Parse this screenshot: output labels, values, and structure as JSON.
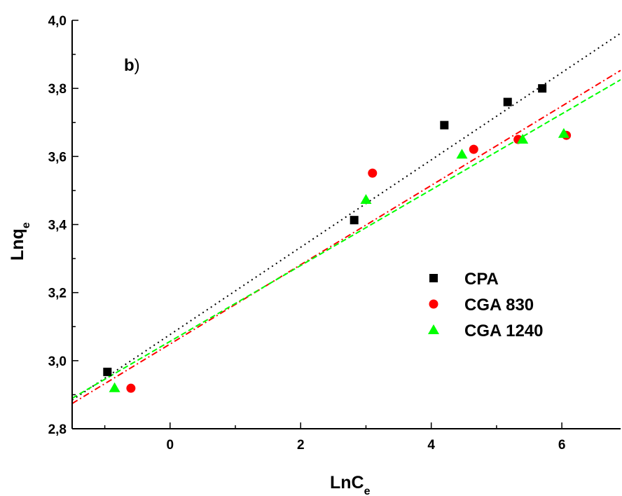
{
  "chart_data": {
    "type": "scatter",
    "panel_label_bold": "b",
    "panel_label_rest": ")",
    "xlabel_main": "LnC",
    "xlabel_sub": "e",
    "ylabel_main": "Lnq",
    "ylabel_sub": "e",
    "xlim": [
      -1.5,
      6.9
    ],
    "ylim": [
      2.8,
      4.0
    ],
    "x_ticks": [
      0,
      2,
      4,
      6
    ],
    "x_tick_labels": [
      "0",
      "2",
      "4",
      "6"
    ],
    "y_ticks": [
      2.8,
      3.0,
      3.2,
      3.4,
      3.6,
      3.8,
      4.0
    ],
    "y_tick_labels": [
      "2,8",
      "3,0",
      "3,2",
      "3,4",
      "3,6",
      "3,8",
      "4,0"
    ],
    "legend_position": "right",
    "series": [
      {
        "name": "CPA",
        "marker": "square",
        "color": "#000000",
        "x": [
          -0.96,
          2.82,
          4.2,
          5.17,
          5.7
        ],
        "y": [
          2.967,
          3.413,
          3.692,
          3.76,
          3.8
        ],
        "fit": {
          "intercept": 3.0767,
          "slope": 0.1283,
          "x_range": [
            -1.5,
            6.9
          ],
          "style": "dotted"
        }
      },
      {
        "name": "CGA 830",
        "marker": "circle",
        "color": "#ff0000",
        "x": [
          -0.6,
          3.1,
          4.65,
          5.33,
          6.07
        ],
        "y": [
          2.919,
          3.551,
          3.621,
          3.65,
          3.662
        ],
        "fit": {
          "intercept": 3.0489,
          "slope": 0.1165,
          "x_range": [
            -1.5,
            6.9
          ],
          "style": "dash-dot"
        }
      },
      {
        "name": "CGA 1240",
        "marker": "triangle",
        "color": "#00ff00",
        "x": [
          -0.85,
          3.0,
          4.47,
          5.4,
          6.03
        ],
        "y": [
          2.92,
          3.473,
          3.606,
          3.65,
          3.667
        ],
        "fit": {
          "intercept": 3.0567,
          "slope": 0.1114,
          "x_range": [
            -1.5,
            6.9
          ],
          "style": "dashed"
        }
      }
    ]
  }
}
